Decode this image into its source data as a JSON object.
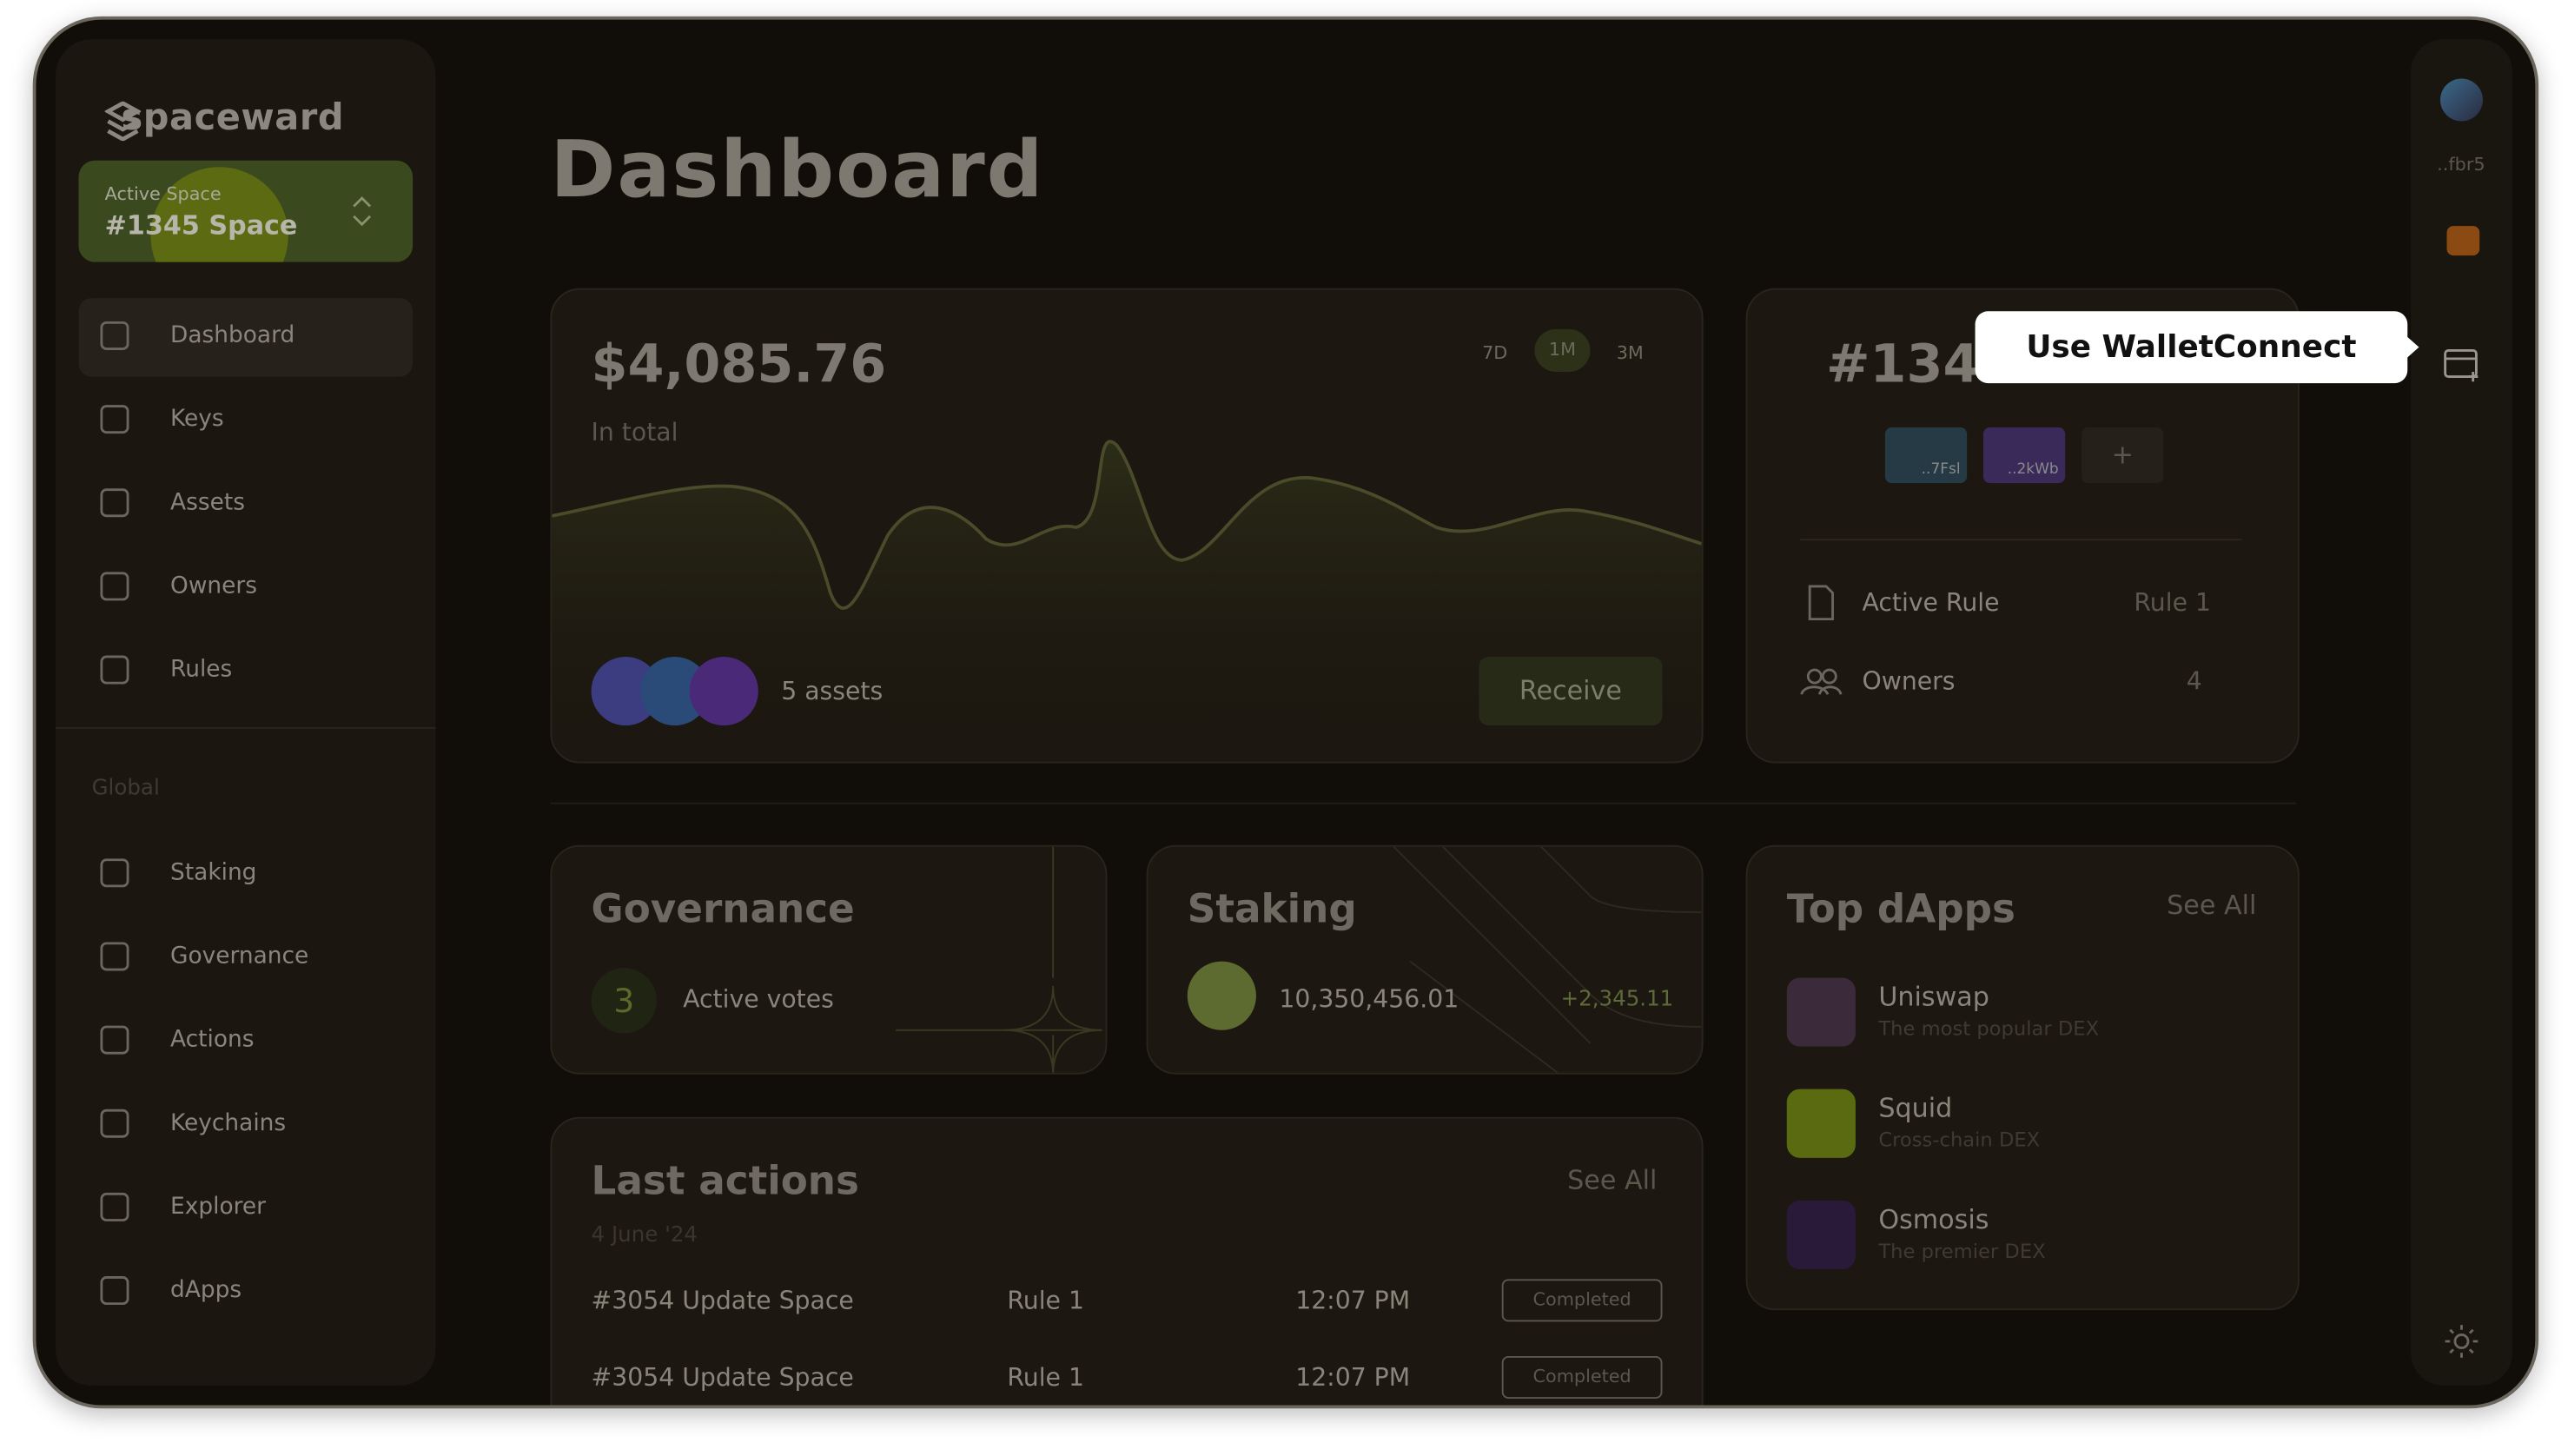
{
  "sidebar": {
    "brand": "spaceward",
    "active_space_label": "Active Space",
    "active_space": "#1345 Space",
    "nav": [
      "Dashboard",
      "Keys",
      "Assets",
      "Owners",
      "Rules"
    ],
    "section": "Global",
    "global_nav": [
      "Staking",
      "Governance",
      "Actions",
      "Keychains",
      "Explorer",
      "dApps"
    ]
  },
  "header": {
    "title": "Dashboard"
  },
  "balance_card": {
    "amount": "$4,085.76",
    "caption": "In total",
    "ranges": [
      "7D",
      "1M",
      "3M"
    ],
    "assets": "5 assets",
    "button": "Receive"
  },
  "space_card": {
    "title": "#134",
    "keys": [
      "..7Fsl",
      "..2kWb"
    ],
    "add": "+",
    "rows": [
      {
        "label": "Active Rule",
        "value": "Rule 1"
      },
      {
        "label": "Owners",
        "value": "4"
      }
    ]
  },
  "tooltip": "Use WalletConnect",
  "governance": {
    "title": "Governance",
    "count": "3",
    "label": "Active votes"
  },
  "staking": {
    "title": "Staking",
    "amount": "10,350,456.01",
    "change": "+2,345.11"
  },
  "top_dapps": {
    "title": "Top dApps",
    "see_all": "See All",
    "items": [
      {
        "name": "Uniswap",
        "desc": "The most popular DEX"
      },
      {
        "name": "Squid",
        "desc": "Cross-chain DEX"
      },
      {
        "name": "Osmosis",
        "desc": "The premier DEX"
      }
    ]
  },
  "last_actions": {
    "title": "Last actions",
    "see_all": "See All",
    "date": "4 June '24",
    "rows": [
      {
        "action": "#3054 Update Space",
        "rule": "Rule 1",
        "time": "12:07 PM",
        "status": "Completed"
      },
      {
        "action": "#3054 Update Space",
        "rule": "Rule 1",
        "time": "12:07 PM",
        "status": "Completed"
      }
    ]
  },
  "right_rail": {
    "account": "..fbr5"
  }
}
